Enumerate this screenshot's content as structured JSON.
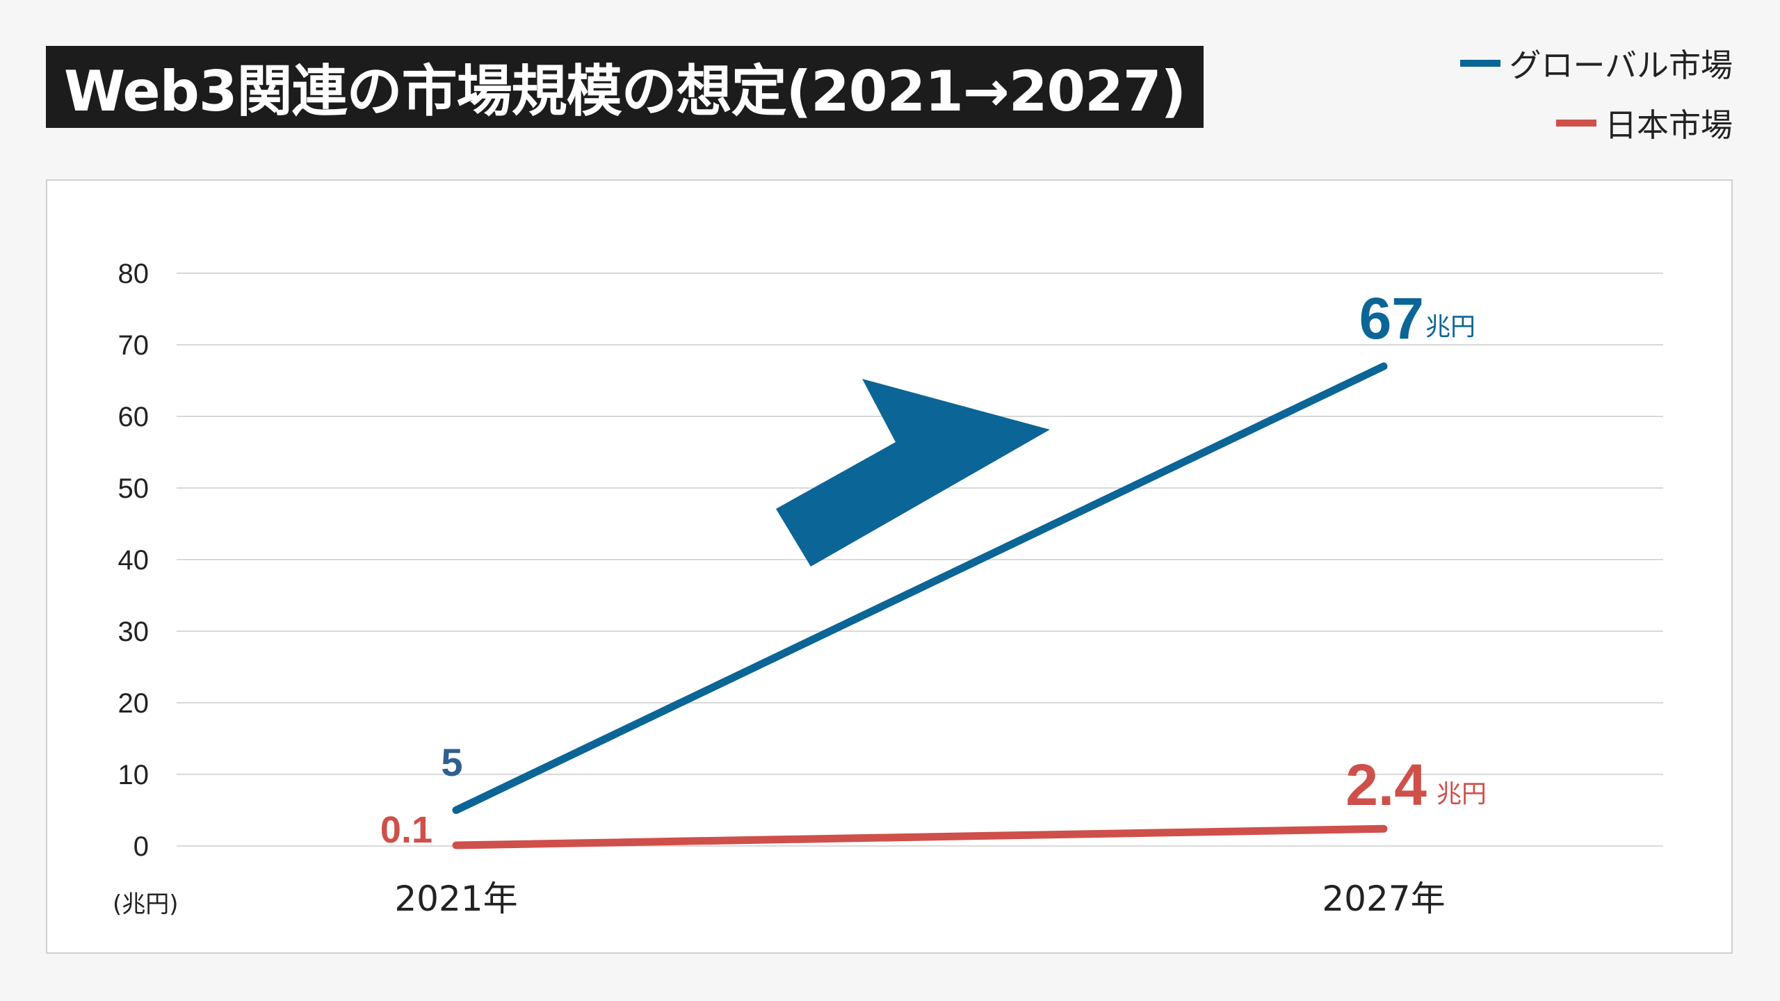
{
  "title": "Web3関連の市場規模の想定(2021→2027)",
  "legend": [
    {
      "label": "グローバル市場",
      "color": "#0b6596"
    },
    {
      "label": "日本市場",
      "color": "#cf4f4a"
    }
  ],
  "chart_data": {
    "type": "line",
    "categories": [
      "2021年",
      "2027年"
    ],
    "series": [
      {
        "name": "グローバル市場",
        "values": [
          5,
          67
        ],
        "color": "#0b6596"
      },
      {
        "name": "日本市場",
        "values": [
          0.1,
          2.4
        ],
        "color": "#cf4f4a"
      }
    ],
    "ylim": [
      0,
      80
    ],
    "yticks": [
      0,
      10,
      20,
      30,
      40,
      50,
      60,
      70,
      80
    ],
    "y_unit_label": "(兆円)",
    "grid": true,
    "data_labels": {
      "global_start": "5",
      "global_end": "67",
      "global_end_unit": "兆円",
      "japan_start": "0.1",
      "japan_end": "2.4",
      "japan_end_unit": "兆円"
    },
    "annotation": "upward-arrow"
  }
}
